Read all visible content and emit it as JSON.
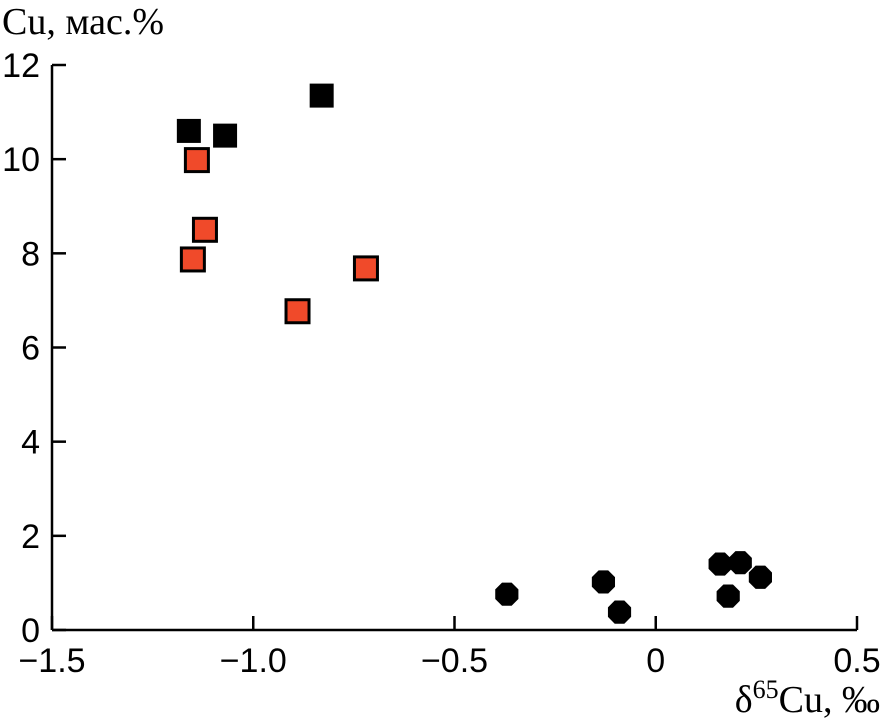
{
  "chart_data": {
    "type": "scatter",
    "ylabel": "Cu, мас.%",
    "xlabel_prefix": "δ",
    "xlabel_sup": "65",
    "xlabel_suffix": "Cu, ‰",
    "xlim": [
      -1.5,
      0.5
    ],
    "ylim": [
      0,
      12
    ],
    "xticks": [
      -1.5,
      -1.0,
      -0.5,
      0,
      0.5
    ],
    "xtick_labels": [
      "−1.5",
      "−1.0",
      "−0.5",
      "0",
      "0.5"
    ],
    "yticks": [
      0,
      2,
      4,
      6,
      8,
      10,
      12
    ],
    "ytick_labels": [
      "0",
      "2",
      "4",
      "6",
      "8",
      "10",
      "12"
    ],
    "grid": false,
    "series": [
      {
        "marker": "square",
        "color": "#000000",
        "points": [
          [
            -1.16,
            10.6
          ],
          [
            -1.07,
            10.5
          ],
          [
            -0.83,
            11.35
          ]
        ]
      },
      {
        "marker": "square",
        "color": "#f04a2a",
        "edge": "#000000",
        "points": [
          [
            -1.14,
            9.98
          ],
          [
            -1.12,
            8.5
          ],
          [
            -1.15,
            7.87
          ],
          [
            -0.89,
            6.77
          ],
          [
            -0.72,
            7.68
          ]
        ]
      },
      {
        "marker": "octagon",
        "color": "#000000",
        "points": [
          [
            -0.37,
            0.76
          ],
          [
            -0.13,
            1.02
          ],
          [
            -0.09,
            0.38
          ],
          [
            0.16,
            1.4
          ],
          [
            0.21,
            1.43
          ],
          [
            0.26,
            1.12
          ],
          [
            0.18,
            0.72
          ]
        ]
      }
    ]
  }
}
